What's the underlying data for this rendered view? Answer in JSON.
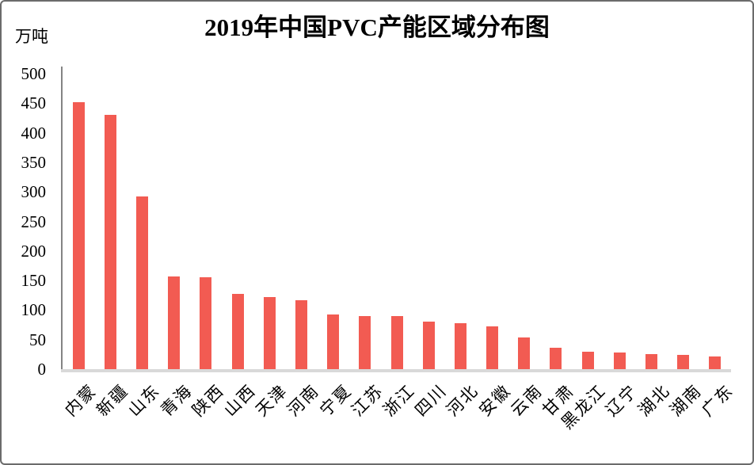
{
  "chart_data": {
    "type": "bar",
    "title": "2019年中国PVC产能区域分布图",
    "ylabel": "万吨",
    "xlabel": "",
    "categories": [
      "内蒙",
      "新疆",
      "山东",
      "青海",
      "陕西",
      "山西",
      "天津",
      "河南",
      "宁夏",
      "江苏",
      "浙江",
      "四川",
      "河北",
      "安徽",
      "云南",
      "甘肃",
      "黑龙江",
      "辽宁",
      "湖北",
      "湖南",
      "广东"
    ],
    "values": [
      452,
      430,
      292,
      157,
      156,
      128,
      122,
      117,
      92,
      90,
      90,
      81,
      78,
      72,
      53,
      36,
      30,
      28,
      26,
      24,
      22
    ],
    "ylim": [
      0,
      500
    ],
    "yticks": [
      0,
      50,
      100,
      150,
      200,
      250,
      300,
      350,
      400,
      450,
      500
    ],
    "grid": "off",
    "legend": "none",
    "bar_color": "#f25b52",
    "axis_color": "#848484",
    "baseline_color": "#d9d9d9",
    "text_color": "#000000",
    "background_color": "#ffffff"
  }
}
